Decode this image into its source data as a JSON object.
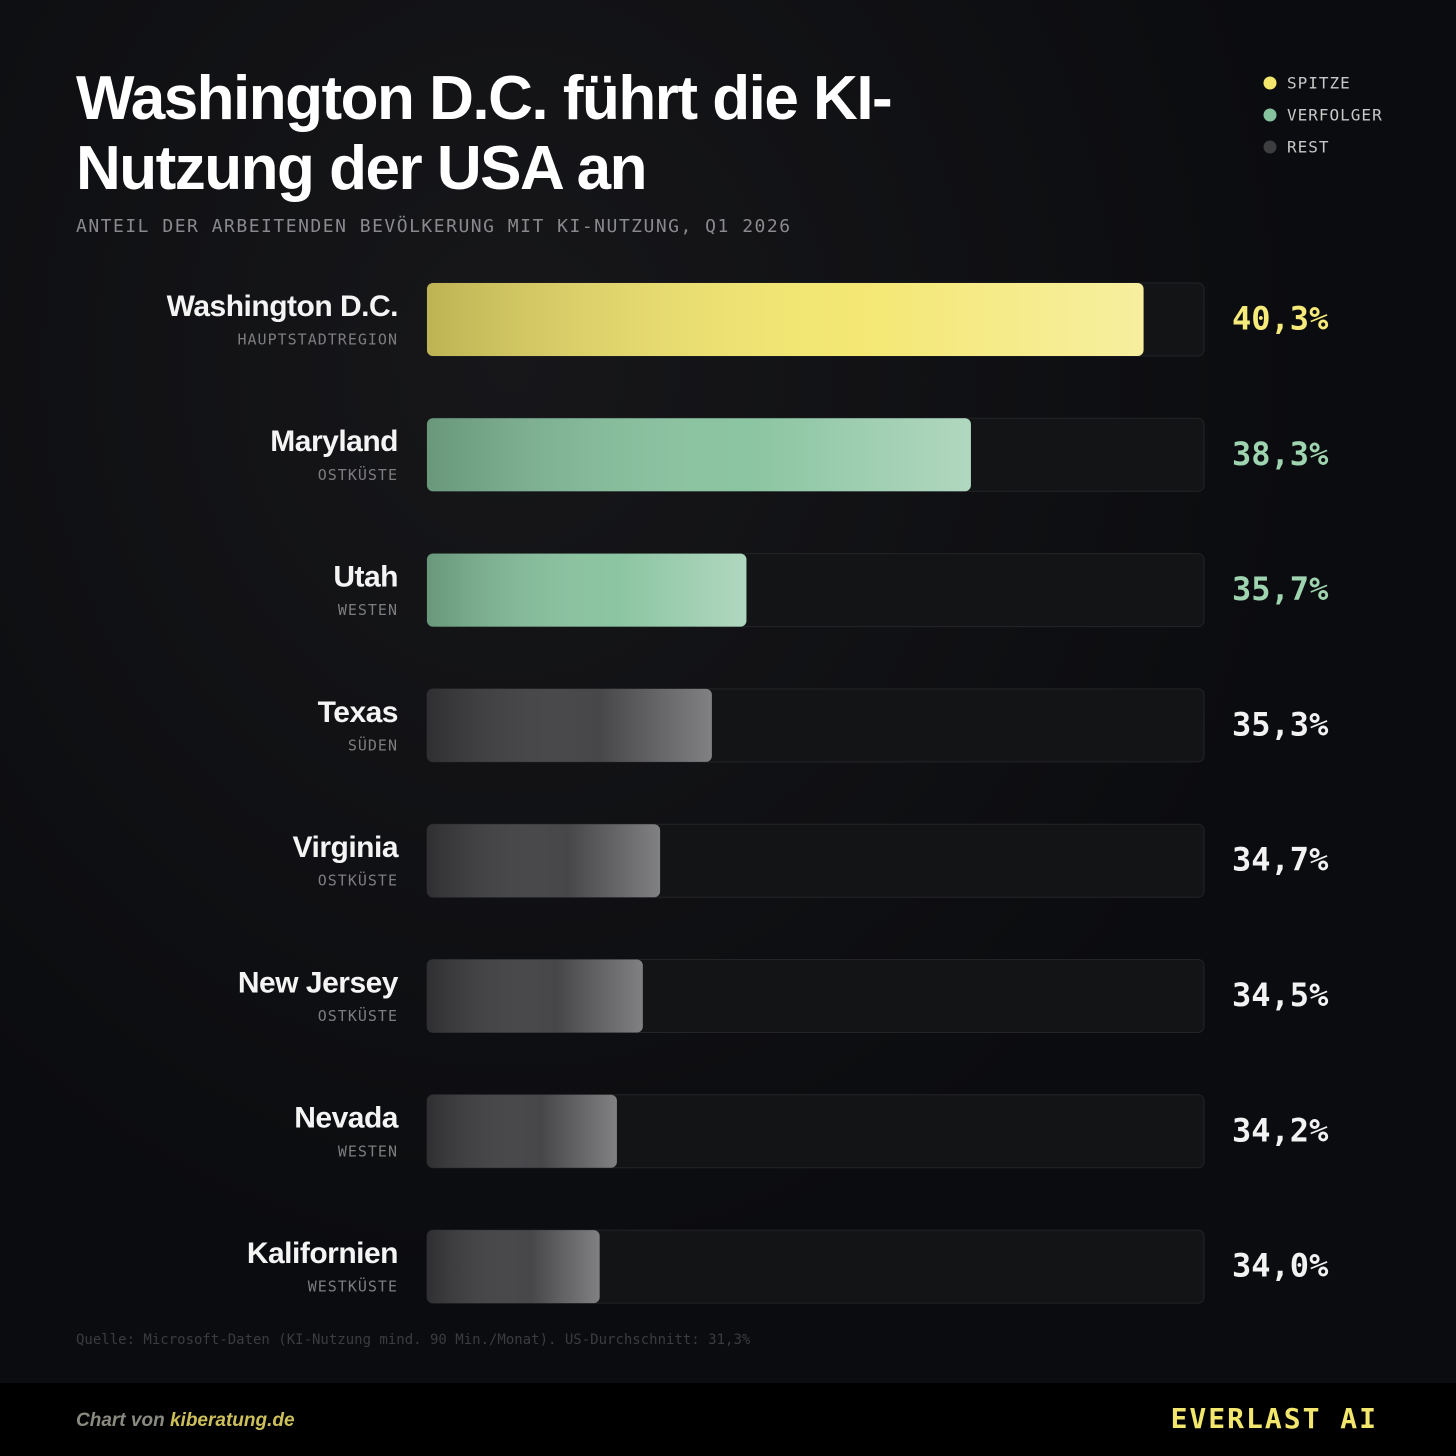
{
  "chart_data": {
    "type": "bar",
    "orientation": "horizontal",
    "title": "Washington D.C. führt die KI-Nutzung der USA an",
    "subtitle": "ANTEIL DER ARBEITENDEN BEVÖLKERUNG MIT KI-NUTZUNG, Q1 2026",
    "categories": [
      "Washington D.C.",
      "Maryland",
      "Utah",
      "Texas",
      "Virginia",
      "New Jersey",
      "Nevada",
      "Kalifornien"
    ],
    "regions": [
      "HAUPTSTADTREGION",
      "OSTKÜSTE",
      "WESTEN",
      "SÜDEN",
      "OSTKÜSTE",
      "OSTKÜSTE",
      "WESTEN",
      "WESTKÜSTE"
    ],
    "values": [
      40.3,
      38.3,
      35.7,
      35.3,
      34.7,
      34.5,
      34.2,
      34.0
    ],
    "value_labels": [
      "40,3%",
      "38,3%",
      "35,7%",
      "35,3%",
      "34,7%",
      "34,5%",
      "34,2%",
      "34,0%"
    ],
    "colors": [
      "#f3e66c",
      "#86c29d",
      "#86c29d",
      "#3d3d40",
      "#3d3d40",
      "#3d3d40",
      "#3d3d40",
      "#3d3d40"
    ],
    "label_colors": [
      "#f6ea7a",
      "#9fd4b0",
      "#9fd4b0",
      "#f2f2f2",
      "#f2f2f2",
      "#f2f2f2",
      "#f2f2f2",
      "#f2f2f2"
    ],
    "xlim": [
      32,
      41
    ],
    "legend": [
      {
        "name": "SPITZE",
        "color": "#f3e66c"
      },
      {
        "name": "VERFOLGER",
        "color": "#86c29d"
      },
      {
        "name": "REST",
        "color": "#3d3d40"
      }
    ],
    "legend_position": "upper right",
    "source": "Quelle: Microsoft-Daten (KI-Nutzung mind. 90 Min./Monat). US-Durchschnitt: 31,3%",
    "credit_prefix": "Chart von",
    "credit_link": "kiberatung.de",
    "brand": "EVERLAST AI"
  }
}
